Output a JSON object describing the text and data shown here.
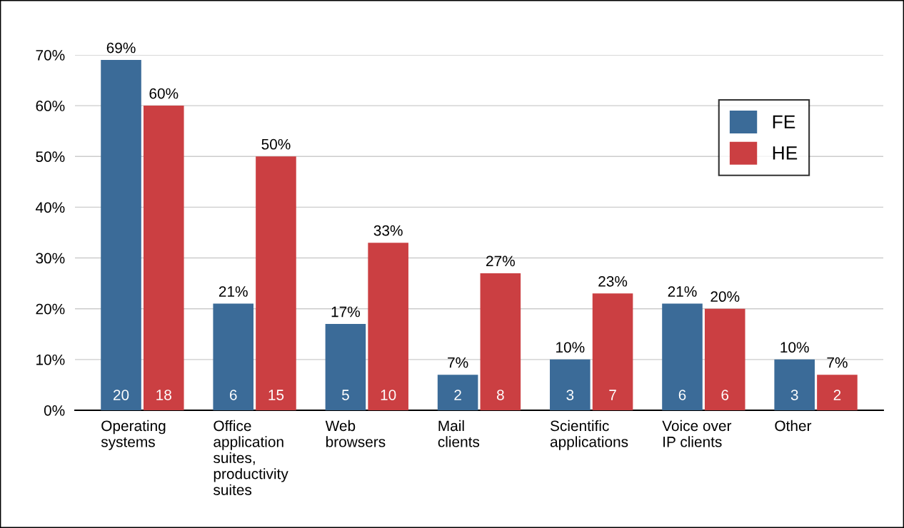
{
  "chart_data": {
    "type": "bar",
    "categories": [
      "Operating\nsystems",
      "Office\napplication\nsuites,\nproductivity\nsuites",
      "Web\nbrowsers",
      "Mail\nclients",
      "Scientific\napplications",
      "Voice over\nIP clients",
      "Other"
    ],
    "series": [
      {
        "name": "FE",
        "color": "#3b6b98",
        "values": [
          69,
          21,
          17,
          7,
          10,
          21,
          10
        ],
        "value_labels": [
          "69%",
          "21%",
          "17%",
          "7%",
          "10%",
          "21%",
          "10%"
        ]
      },
      {
        "name": "HE",
        "color": "#cb3f42",
        "values": [
          60,
          50,
          33,
          27,
          23,
          20,
          7
        ],
        "value_labels": [
          "60%",
          "50%",
          "33%",
          "27%",
          "23%",
          "20%",
          "7%"
        ]
      }
    ],
    "ylim": [
      0,
      70
    ],
    "yticks": [
      {
        "value": 0,
        "label": "0%"
      },
      {
        "value": 10,
        "label": "10%"
      },
      {
        "value": 20,
        "label": "20%"
      },
      {
        "value": 30,
        "label": "30%"
      },
      {
        "value": 40,
        "label": "40%"
      },
      {
        "value": 50,
        "label": "50%"
      },
      {
        "value": 60,
        "label": "60%"
      },
      {
        "value": 70,
        "label": "70%"
      }
    ],
    "grid": "y",
    "legend": "top right",
    "annotations": [
      "20",
      "18",
      "6",
      "15",
      "5",
      "10",
      "2",
      "8",
      "3",
      "7",
      "6",
      "6",
      "3",
      "2"
    ]
  }
}
